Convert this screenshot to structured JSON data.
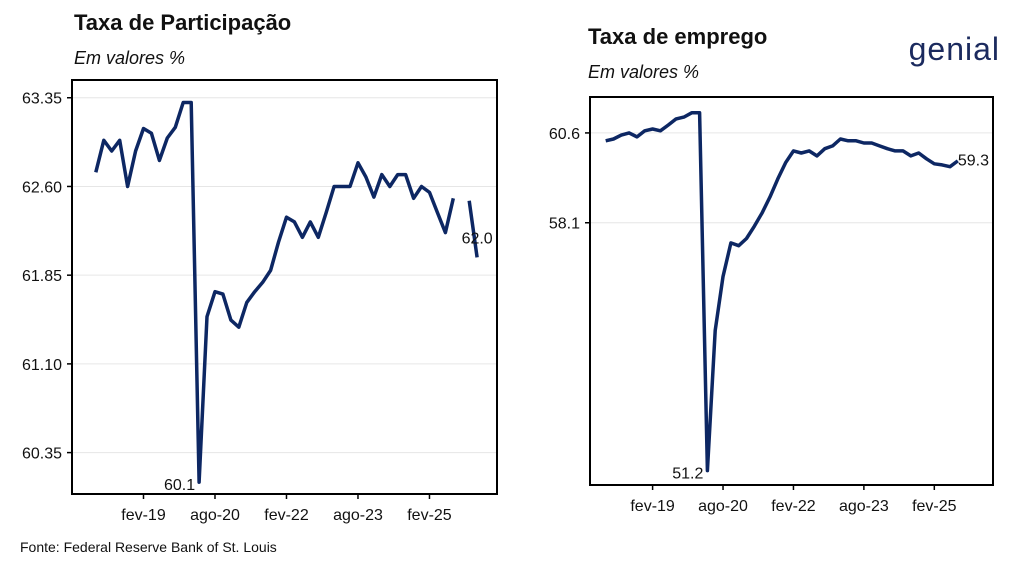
{
  "chart_data": [
    {
      "type": "line",
      "title": "Taxa de Participação",
      "subtitle": "Em valores %",
      "x": [
        "2018-02",
        "2018-04",
        "2018-06",
        "2018-08",
        "2018-10",
        "2018-12",
        "2019-02",
        "2019-04",
        "2019-06",
        "2019-08",
        "2019-10",
        "2019-12",
        "2020-02",
        "2020-04",
        "2020-06",
        "2020-08",
        "2020-10",
        "2020-12",
        "2021-02",
        "2021-04",
        "2021-06",
        "2021-08",
        "2021-10",
        "2021-12",
        "2022-02",
        "2022-04",
        "2022-06",
        "2022-08",
        "2022-10",
        "2022-12",
        "2023-02",
        "2023-04",
        "2023-06",
        "2023-08",
        "2023-10",
        "2023-12",
        "2024-02",
        "2024-04",
        "2024-06",
        "2024-08",
        "2024-10",
        "2024-12",
        "2025-02",
        "2025-04",
        "2025-06",
        "2025-08",
        "2025-10",
        "2025-12",
        "2026-02"
      ],
      "series": [
        {
          "color": "#0d2763",
          "values": [
            62.72,
            62.99,
            62.9,
            62.99,
            62.6,
            62.9,
            63.09,
            63.05,
            62.82,
            63.01,
            63.1,
            63.31,
            63.31,
            60.1,
            61.5,
            61.71,
            61.69,
            61.47,
            61.41,
            61.62,
            61.71,
            61.79,
            61.89,
            62.13,
            62.34,
            62.3,
            62.17,
            62.3,
            62.17,
            62.38,
            62.6,
            62.6,
            62.6,
            62.8,
            62.68,
            62.51,
            62.7,
            62.6,
            62.7,
            62.7,
            62.5,
            62.6,
            62.55,
            62.38,
            62.21,
            62.5,
            null,
            62.48,
            62.0
          ],
          "value_labels": [
            null,
            null,
            null,
            null,
            null,
            null,
            null,
            null,
            null,
            null,
            null,
            null,
            null,
            "60.1",
            null,
            null,
            null,
            null,
            null,
            null,
            null,
            null,
            null,
            null,
            null,
            null,
            null,
            null,
            null,
            null,
            null,
            null,
            null,
            null,
            null,
            null,
            null,
            null,
            null,
            null,
            null,
            null,
            null,
            null,
            null,
            null,
            null,
            null,
            "62.0"
          ]
        }
      ],
      "xlim": [
        "2017-08",
        "2026-07"
      ],
      "xticks": [
        {
          "value": "2019-02",
          "label": "fev-19"
        },
        {
          "value": "2020-08",
          "label": "ago-20"
        },
        {
          "value": "2022-02",
          "label": "fev-22"
        },
        {
          "value": "2023-08",
          "label": "ago-23"
        },
        {
          "value": "2025-02",
          "label": "fev-25"
        }
      ],
      "ylim": [
        60.0,
        63.5
      ],
      "yticks": [
        63.35,
        {
          "value": 62.6,
          "label": "62.60"
        },
        61.85,
        {
          "value": 61.1,
          "label": "61.10"
        },
        60.35
      ],
      "grid": true
    },
    {
      "type": "line",
      "title": "Taxa de emprego",
      "subtitle": "Em valores %",
      "x": [
        "2018-02",
        "2018-04",
        "2018-06",
        "2018-08",
        "2018-10",
        "2018-12",
        "2019-02",
        "2019-04",
        "2019-06",
        "2019-08",
        "2019-10",
        "2019-12",
        "2020-02",
        "2020-04",
        "2020-06",
        "2020-08",
        "2020-10",
        "2020-12",
        "2021-02",
        "2021-04",
        "2021-06",
        "2021-08",
        "2021-10",
        "2021-12",
        "2022-02",
        "2022-04",
        "2022-06",
        "2022-08",
        "2022-10",
        "2022-12",
        "2023-02",
        "2023-04",
        "2023-06",
        "2023-08",
        "2023-10",
        "2023-12",
        "2024-02",
        "2024-04",
        "2024-06",
        "2024-08",
        "2024-10",
        "2024-12",
        "2025-02",
        "2025-04",
        "2025-06",
        "2025-08",
        "2025-10",
        "2025-12"
      ],
      "series": [
        {
          "color": "#0d2763",
          "values": [
            60.38,
            60.43,
            60.54,
            60.6,
            60.49,
            60.66,
            60.71,
            60.66,
            60.82,
            60.99,
            61.04,
            61.16,
            61.16,
            51.2,
            55.1,
            56.6,
            57.54,
            57.46,
            57.66,
            58.0,
            58.38,
            58.82,
            59.32,
            59.77,
            60.1,
            60.04,
            60.1,
            59.96,
            60.16,
            60.24,
            60.43,
            60.38,
            60.38,
            60.32,
            60.32,
            60.24,
            60.16,
            60.1,
            60.1,
            59.96,
            60.04,
            59.88,
            59.74,
            59.71,
            59.66,
            59.82,
            null,
            59.3
          ],
          "value_labels": [
            null,
            null,
            null,
            null,
            null,
            null,
            null,
            null,
            null,
            null,
            null,
            null,
            null,
            "51.2",
            null,
            null,
            null,
            null,
            null,
            null,
            null,
            null,
            null,
            null,
            null,
            null,
            null,
            null,
            null,
            null,
            null,
            null,
            null,
            null,
            null,
            null,
            null,
            null,
            null,
            null,
            null,
            null,
            null,
            null,
            null,
            null,
            null,
            "59.3"
          ]
        }
      ],
      "xlim": [
        "2017-10",
        "2026-05"
      ],
      "xticks": [
        {
          "value": "2019-02",
          "label": "fev-19"
        },
        {
          "value": "2020-08",
          "label": "ago-20"
        },
        {
          "value": "2022-02",
          "label": "fev-22"
        },
        {
          "value": "2023-08",
          "label": "ago-23"
        },
        {
          "value": "2025-02",
          "label": "fev-25"
        }
      ],
      "ylim": [
        50.8,
        61.6
      ],
      "yticks": [
        60.6,
        58.1
      ],
      "grid": true
    }
  ],
  "logo": "genial",
  "source": "Fonte: Federal Reserve Bank of St. Louis"
}
